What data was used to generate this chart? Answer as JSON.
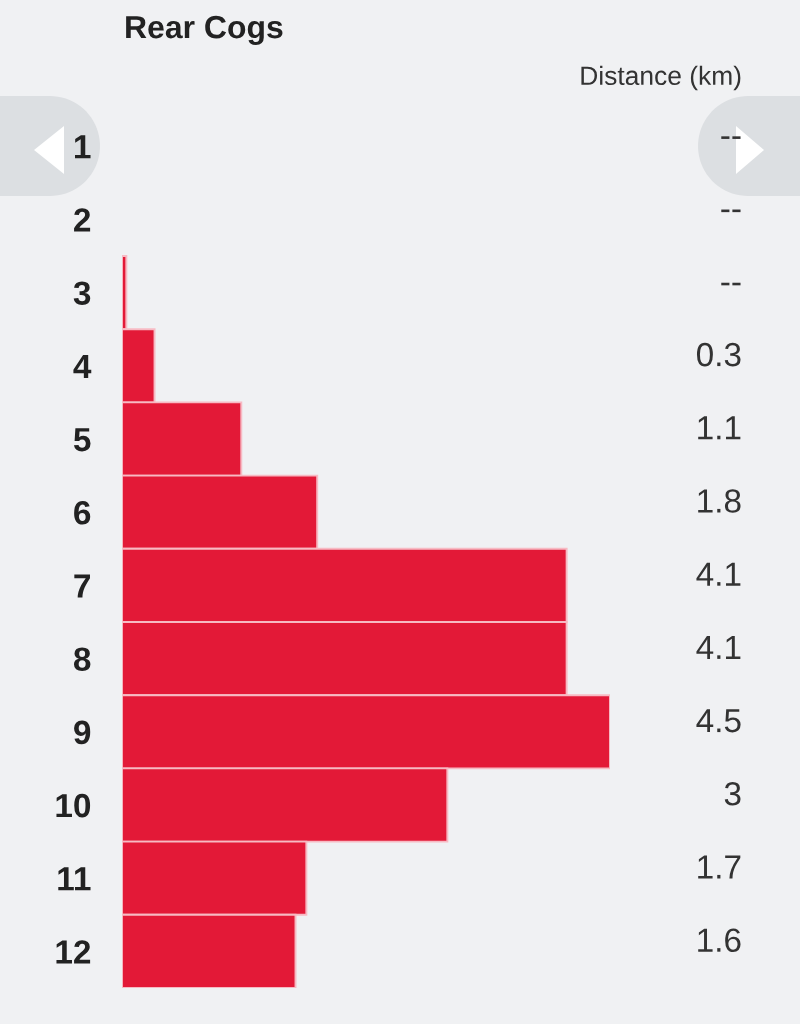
{
  "chart_data": {
    "type": "bar",
    "orientation": "horizontal",
    "title": "Rear Cogs",
    "annotations": [
      "Distance (km)"
    ],
    "categories": [
      "1",
      "2",
      "3",
      "4",
      "5",
      "6",
      "7",
      "8",
      "9",
      "10",
      "11",
      "12"
    ],
    "values": [
      null,
      null,
      0.04,
      0.3,
      1.1,
      1.8,
      4.1,
      4.1,
      4.5,
      3,
      1.7,
      1.6
    ],
    "value_labels": [
      "--",
      "--",
      "--",
      "0.3",
      "1.1",
      "1.8",
      "4.1",
      "4.1",
      "4.5",
      "3",
      "1.7",
      "1.6"
    ],
    "color": "#e31937",
    "tick_labels": "y"
  }
}
